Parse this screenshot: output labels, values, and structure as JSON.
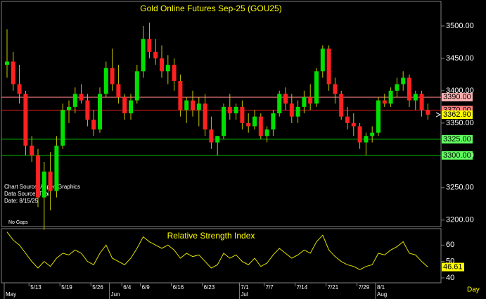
{
  "chart_data": [
    {
      "type": "candlestick",
      "title": "Gold Online Futures Sep-25 (GOU25)",
      "open": [
        3440,
        3445,
        3410,
        3395,
        3315,
        3300,
        3235,
        3275,
        3245,
        3315,
        3370,
        3375,
        3395,
        3385,
        3355,
        3340,
        3395,
        3435,
        3410,
        3390,
        3365,
        3385,
        3430,
        3480,
        3460,
        3450,
        3430,
        3440,
        3415,
        3370,
        3385,
        3370,
        3380,
        3340,
        3320,
        3330,
        3375,
        3365,
        3375,
        3350,
        3345,
        3360,
        3330,
        3340,
        3365,
        3395,
        3380,
        3360,
        3375,
        3390,
        3380,
        3430,
        3465,
        3410,
        3395,
        3360,
        3350,
        3345,
        3320,
        3330,
        3335,
        3385,
        3380,
        3400,
        3410,
        3420,
        3385,
        3395,
        3370
      ],
      "high": [
        3495,
        3460,
        3440,
        3400,
        3330,
        3310,
        3290,
        3305,
        3330,
        3380,
        3385,
        3405,
        3410,
        3395,
        3370,
        3405,
        3445,
        3465,
        3440,
        3395,
        3395,
        3440,
        3500,
        3505,
        3480,
        3470,
        3455,
        3450,
        3425,
        3390,
        3400,
        3390,
        3395,
        3360,
        3330,
        3380,
        3395,
        3380,
        3385,
        3365,
        3370,
        3365,
        3345,
        3370,
        3400,
        3405,
        3395,
        3385,
        3400,
        3410,
        3435,
        3470,
        3470,
        3420,
        3400,
        3375,
        3365,
        3350,
        3335,
        3345,
        3390,
        3395,
        3405,
        3420,
        3430,
        3425,
        3400,
        3400,
        3380
      ],
      "low": [
        3420,
        3400,
        3380,
        3300,
        3290,
        3220,
        3185,
        3215,
        3235,
        3310,
        3350,
        3365,
        3380,
        3345,
        3330,
        3335,
        3390,
        3400,
        3380,
        3355,
        3355,
        3380,
        3420,
        3450,
        3440,
        3420,
        3410,
        3400,
        3360,
        3350,
        3360,
        3345,
        3330,
        3310,
        3300,
        3325,
        3355,
        3355,
        3340,
        3335,
        3340,
        3325,
        3320,
        3330,
        3360,
        3370,
        3350,
        3350,
        3365,
        3370,
        3375,
        3420,
        3400,
        3380,
        3355,
        3340,
        3330,
        3310,
        3300,
        3320,
        3330,
        3375,
        3375,
        3390,
        3400,
        3375,
        3370,
        3360,
        3355
      ],
      "close": [
        3445,
        3410,
        3395,
        3315,
        3300,
        3235,
        3275,
        3245,
        3315,
        3370,
        3375,
        3395,
        3385,
        3355,
        3340,
        3395,
        3435,
        3410,
        3390,
        3365,
        3385,
        3430,
        3480,
        3460,
        3450,
        3430,
        3440,
        3415,
        3370,
        3385,
        3370,
        3380,
        3340,
        3320,
        3330,
        3375,
        3365,
        3375,
        3350,
        3345,
        3360,
        3330,
        3340,
        3365,
        3395,
        3380,
        3360,
        3375,
        3390,
        3380,
        3430,
        3465,
        3410,
        3395,
        3360,
        3350,
        3345,
        3320,
        3330,
        3335,
        3385,
        3380,
        3400,
        3410,
        3420,
        3385,
        3395,
        3370,
        3362.9
      ],
      "up_color": "#00e000",
      "down_color": "#ff2020",
      "wick_color": "#c8c800",
      "ylim": [
        3190,
        3538
      ],
      "yticks": [
        {
          "value": 3200,
          "label": "3200.00"
        },
        {
          "value": 3250,
          "label": "3250.00"
        },
        {
          "value": 3300,
          "label": "3300.00"
        },
        {
          "value": 3350,
          "label": "3350.00"
        },
        {
          "value": 3400,
          "label": "3400.00"
        },
        {
          "value": 3450,
          "label": "3450.00"
        },
        {
          "value": 3500,
          "label": "3500.00"
        }
      ],
      "levels": [
        {
          "value": 3390,
          "label": "3390.00",
          "color": "#ff8080",
          "box": "#ffb0b0"
        },
        {
          "value": 3370,
          "label": "3370.00",
          "color": "#ff2020",
          "box": "#ff8080"
        },
        {
          "value": 3325,
          "label": "3325.00",
          "color": "#00c000",
          "box": "#60ff60"
        },
        {
          "value": 3300,
          "label": "3300.00",
          "color": "#00c000",
          "box": "#60ff60"
        }
      ],
      "last_price": {
        "value": 3362.9,
        "label": "3362.90"
      },
      "annotations": [
        "Chart Source: Aspen Graphics",
        "Data Source: Thai",
        "Date:  8/15/25",
        "No Gaps"
      ]
    },
    {
      "type": "line",
      "title": "Relative Strength Index",
      "categories": [
        null,
        null,
        null,
        null,
        "5/13",
        null,
        null,
        null,
        null,
        "5/19",
        null,
        null,
        null,
        null,
        "5/26",
        null,
        null,
        null,
        null,
        "6/4",
        null,
        null,
        "6/9",
        null,
        null,
        null,
        null,
        "6/16",
        null,
        null,
        null,
        null,
        "6/23",
        null,
        null,
        null,
        null,
        null,
        "7/1",
        null,
        null,
        null,
        "7/7",
        null,
        null,
        null,
        null,
        "7/14",
        null,
        null,
        null,
        null,
        "7/21",
        null,
        null,
        null,
        null,
        "7/29",
        null,
        null,
        "8/1",
        null,
        null,
        null,
        null,
        null,
        null,
        null,
        null
      ],
      "months": [
        "May",
        null,
        null,
        null,
        null,
        null,
        null,
        null,
        null,
        null,
        null,
        null,
        null,
        null,
        null,
        null,
        null,
        "Jun",
        null,
        null,
        null,
        null,
        null,
        null,
        null,
        null,
        null,
        null,
        null,
        null,
        null,
        null,
        null,
        null,
        null,
        null,
        null,
        null,
        "Jul",
        null,
        null,
        null,
        null,
        null,
        null,
        null,
        null,
        null,
        null,
        null,
        null,
        null,
        null,
        null,
        null,
        null,
        null,
        null,
        null,
        null,
        "Aug",
        null,
        null,
        null,
        null,
        null,
        null,
        null,
        null
      ],
      "x_label": "Day",
      "values": [
        68,
        63,
        60,
        55,
        50,
        46,
        50,
        47,
        52,
        55,
        54,
        57,
        55,
        50,
        48,
        55,
        60,
        52,
        50,
        48,
        52,
        58,
        65,
        62,
        60,
        58,
        60,
        57,
        52,
        55,
        53,
        54,
        50,
        46,
        48,
        55,
        52,
        54,
        50,
        48,
        52,
        47,
        49,
        54,
        58,
        55,
        52,
        54,
        57,
        55,
        62,
        66,
        57,
        53,
        50,
        48,
        47,
        45,
        47,
        48,
        55,
        54,
        57,
        59,
        62,
        55,
        54,
        50,
        46.61
      ],
      "value_label": "46.61",
      "color": "#e0e000",
      "ylim": [
        37,
        70
      ],
      "yticks": [
        40,
        50,
        60
      ]
    }
  ]
}
